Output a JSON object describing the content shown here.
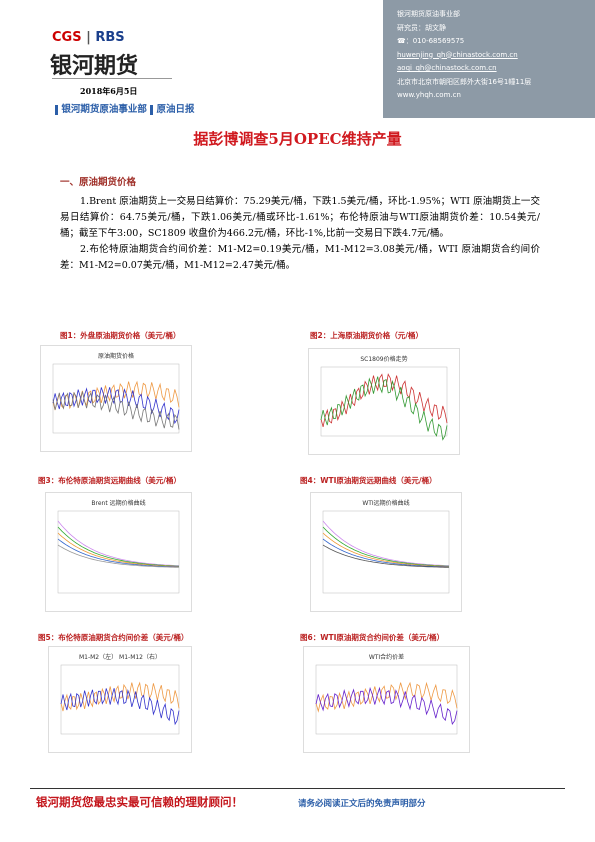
{
  "header": {
    "logo_cgs": "CGS",
    "logo_rbs": "RBS",
    "logo_name": "银河期货",
    "date": "2018年6月5日",
    "dept": "银河期货原油事业部",
    "report": "原油日报",
    "contact": [
      "银河期货原油事业部",
      "研究员：胡文静",
      "☎：010-68569575",
      "huwenjing_qh@chinastock.com.cn",
      "aoqi_qh@chinastock.com.cn",
      "北京市北京市朝阳区郎外大街16号1幢11层",
      "www.yhqh.com.cn"
    ]
  },
  "title": "据彭博调查5月OPEC维持产量",
  "section": "一、原油期货价格",
  "paragraphs": [
    "1.Brent 原油期货上一交易日结算价：75.29美元/桶，下跌1.5美元/桶，环比-1.95%；WTI 原油期货上一交易日结算价：64.75美元/桶，下跌1.06美元/桶或环比-1.61%；布伦特原油与WTI原油期货价差：10.54美元/桶；截至下午3:00，SC1809 收盘价为466.2元/桶，环比-1%,比前一交易日下跌4.7元/桶。",
    "2.布伦特原油期货合约间价差：M1-M2=0.19美元/桶，M1-M12=3.08美元/桶，WTI 原油期货合约间价差：M1-M2=0.07美元/桶，M1-M12=2.47美元/桶。"
  ],
  "figures": [
    {
      "caption": "图1：外盘原油期货价格（美元/桶）",
      "chart_title": "原油期货价格"
    },
    {
      "caption": "图2：上海原油期货价格（元/桶）",
      "chart_title": "SC1809价格走势"
    },
    {
      "caption": "图3：布伦特原油期货远期曲线（美元/桶）",
      "chart_title": "Brent 远期价格曲线"
    },
    {
      "caption": "图4：WTI原油期货远期曲线（美元/桶）",
      "chart_title": "WTI远期价格曲线"
    },
    {
      "caption": "图5：布伦特原油期货合约间价差（美元/桶）",
      "chart_title": "M1-M2（左）  M1-M12（右）"
    },
    {
      "caption": "图6：WTI原油期货合约间价差（美元/桶）",
      "chart_title": "WTI合约价差"
    }
  ],
  "footer": {
    "slogan": "银河期货您最忠实最可信赖的理财顾问！",
    "disclaimer": "请务必阅读正文后的免责声明部分"
  }
}
